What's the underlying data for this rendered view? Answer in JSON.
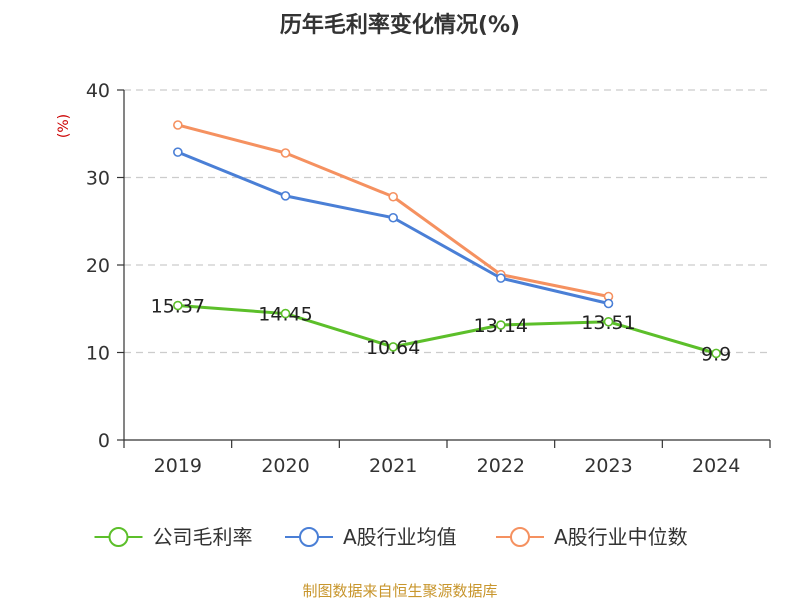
{
  "chart_data": {
    "type": "line",
    "title": "历年毛利率变化情况(%)",
    "unit_label": "(%)",
    "categories": [
      "2019",
      "2020",
      "2021",
      "2022",
      "2023",
      "2024"
    ],
    "ylim": [
      0,
      40
    ],
    "yticks": [
      0,
      10,
      20,
      30,
      40
    ],
    "grid": true,
    "legend_position": "bottom",
    "series": [
      {
        "name": "公司毛利率",
        "color": "#5cbf2a",
        "values": [
          15.37,
          14.45,
          10.64,
          13.14,
          13.51,
          9.9
        ],
        "labels": [
          "15.37",
          "14.45",
          "10.64",
          "13.14",
          "13.51",
          "9.9"
        ]
      },
      {
        "name": "A股行业均值",
        "color": "#4a7fd6",
        "values": [
          32.9,
          27.9,
          25.4,
          18.5,
          15.6,
          null
        ]
      },
      {
        "name": "A股行业中位数",
        "color": "#f59160",
        "values": [
          36.0,
          32.8,
          27.8,
          18.9,
          16.4,
          null
        ]
      }
    ],
    "source": "制图数据来自恒生聚源数据库"
  }
}
